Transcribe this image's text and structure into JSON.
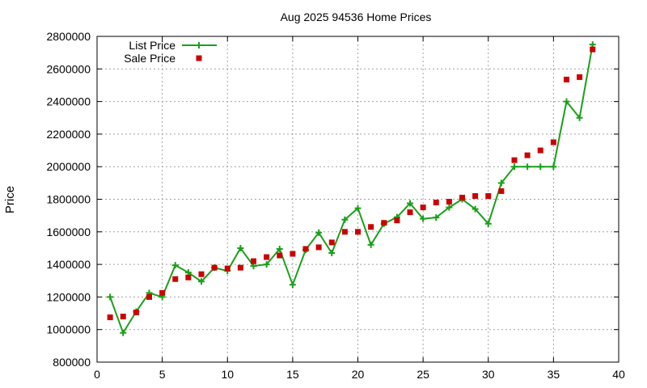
{
  "chart_data": {
    "type": "line",
    "title": "Aug 2025 94536 Home Prices",
    "xlabel": "",
    "ylabel": "Price",
    "xlim": [
      0,
      40
    ],
    "ylim": [
      800000,
      2800000
    ],
    "x_ticks": [
      0,
      5,
      10,
      15,
      20,
      25,
      30,
      35,
      40
    ],
    "y_ticks": [
      800000,
      1000000,
      1200000,
      1400000,
      1600000,
      1800000,
      2000000,
      2200000,
      2400000,
      2600000,
      2800000
    ],
    "grid": true,
    "legend_position": "top-left",
    "series": [
      {
        "name": "List Price",
        "style": "line-with-plus-markers",
        "color": "#1aa01a",
        "x": [
          1,
          2,
          3,
          4,
          5,
          6,
          7,
          8,
          9,
          10,
          11,
          12,
          13,
          14,
          15,
          16,
          17,
          18,
          19,
          20,
          21,
          22,
          23,
          24,
          25,
          26,
          27,
          28,
          29,
          30,
          31,
          32,
          33,
          34,
          35,
          36,
          37,
          38
        ],
        "values": [
          1200000,
          980000,
          1110000,
          1225000,
          1200000,
          1395000,
          1350000,
          1295000,
          1380000,
          1360000,
          1500000,
          1390000,
          1400000,
          1495000,
          1275000,
          1490000,
          1595000,
          1470000,
          1675000,
          1745000,
          1520000,
          1650000,
          1690000,
          1775000,
          1680000,
          1688000,
          1750000,
          1800000,
          1740000,
          1650000,
          1900000,
          2000000,
          2000000,
          2000000,
          2000000,
          2400000,
          2300000,
          2750000
        ]
      },
      {
        "name": "Sale Price",
        "style": "square-markers",
        "color": "#cc0000",
        "x": [
          1,
          2,
          3,
          4,
          5,
          6,
          7,
          8,
          9,
          10,
          11,
          12,
          13,
          14,
          15,
          16,
          17,
          18,
          19,
          20,
          21,
          22,
          23,
          24,
          25,
          26,
          27,
          28,
          29,
          30,
          31,
          32,
          33,
          34,
          35,
          36,
          37,
          38
        ],
        "values": [
          1075000,
          1080000,
          1105000,
          1200000,
          1225000,
          1310000,
          1320000,
          1340000,
          1380000,
          1375000,
          1380000,
          1420000,
          1445000,
          1455000,
          1465000,
          1495000,
          1505000,
          1535000,
          1600000,
          1600000,
          1630000,
          1655000,
          1670000,
          1720000,
          1750000,
          1780000,
          1785000,
          1810000,
          1820000,
          1820000,
          1850000,
          2040000,
          2070000,
          2100000,
          2150000,
          2535000,
          2550000,
          2720000
        ]
      }
    ]
  }
}
